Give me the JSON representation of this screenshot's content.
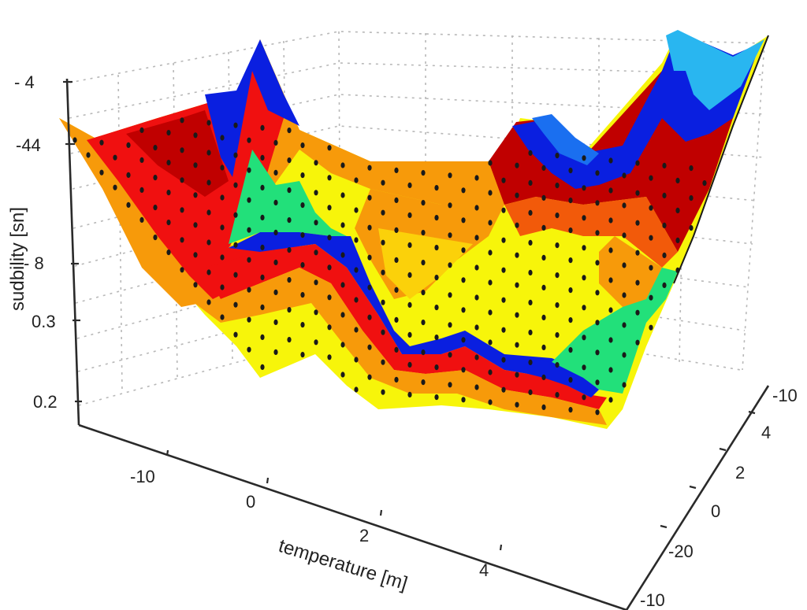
{
  "chart_data": {
    "type": "surface3d",
    "title": "",
    "xlabel": "temperature [m]",
    "ylabel": "",
    "zlabel": "sudbility [sn]",
    "x_ticks": [
      "-10",
      "0",
      "2",
      "4"
    ],
    "y_ticks": [
      "-10",
      "4",
      "2",
      "0",
      "-20",
      "-10"
    ],
    "z_ticks": [
      "- 4",
      "-44",
      "- 8",
      "0.3",
      "0.2"
    ],
    "grid": true,
    "colormap": "jet",
    "markers": "black dots at grid nodes",
    "color_bands": {
      "light_blue": "#29b6f0",
      "blue": "#0a1fe0",
      "dark_red": "#c00000",
      "red": "#f01010",
      "orange_red": "#f25a0a",
      "orange": "#f79a0a",
      "yellow_orange": "#fbd10a",
      "yellow": "#f7f50a",
      "green": "#22e07a"
    },
    "surface_profile": {
      "description": "Valley-shaped surface: high edges at left (orange/red) and right back corner (blue/light-blue), low trough in center with yellow, green and blue ridges",
      "left_edge_height": "high",
      "left_peak_color": "blue",
      "right_back_peak_color": "light_blue",
      "center": "low yellow trough with green and blue folds"
    }
  },
  "axes": {
    "z_label": "sudbility [sn]",
    "x_label": "temperature [m]",
    "z_tick_labels": [
      "- 4",
      "-44",
      "- 8",
      "0.3",
      "0.2"
    ],
    "x_tick_labels": [
      "-10",
      "0",
      "2",
      "4"
    ],
    "y_tick_labels": [
      "-10",
      "4",
      "2",
      "0",
      "-20",
      "-10"
    ]
  }
}
